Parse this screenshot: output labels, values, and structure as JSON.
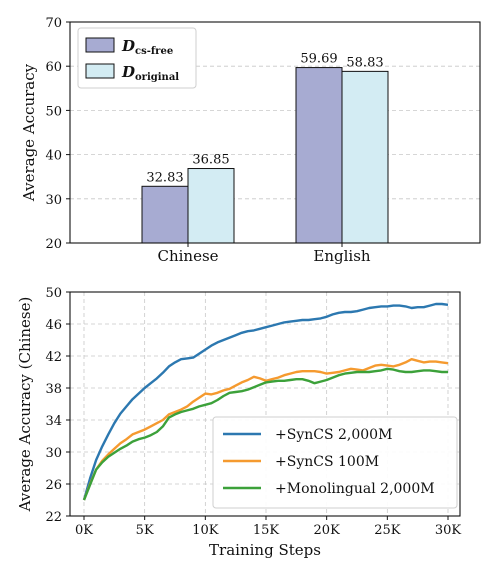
{
  "chart_data": [
    {
      "type": "bar",
      "ylabel": "Average Accuracy",
      "ylim": [
        20,
        70
      ],
      "yticks": [
        20,
        30,
        40,
        50,
        60,
        70
      ],
      "categories": [
        "Chinese",
        "English"
      ],
      "grid": true,
      "legend_position": "top-left",
      "series": [
        {
          "name_main": "D",
          "name_sub": "cs-free",
          "values": [
            32.83,
            59.69
          ],
          "value_labels": [
            "32.83",
            "59.69"
          ],
          "color": "#a7abd2"
        },
        {
          "name_main": "D",
          "name_sub": "original",
          "values": [
            36.85,
            58.83
          ],
          "value_labels": [
            "36.85",
            "58.83"
          ],
          "color": "#d3ecf3"
        }
      ]
    },
    {
      "type": "line",
      "xlabel": "Training Steps",
      "ylabel": "Average Accuracy (Chinese)",
      "ylim": [
        22,
        50
      ],
      "yticks": [
        22,
        26,
        30,
        34,
        38,
        42,
        46,
        50
      ],
      "xlim": [
        0,
        30000
      ],
      "xticks": [
        0,
        5000,
        10000,
        15000,
        20000,
        25000,
        30000
      ],
      "xtick_labels": [
        "0K",
        "5K",
        "10K",
        "15K",
        "20K",
        "25K",
        "30K"
      ],
      "grid": true,
      "legend_position": "lower-right",
      "x": [
        0,
        500,
        1000,
        1500,
        2000,
        2500,
        3000,
        3500,
        4000,
        4500,
        5000,
        5500,
        6000,
        6500,
        7000,
        7500,
        8000,
        8500,
        9000,
        9500,
        10000,
        10500,
        11000,
        11500,
        12000,
        12500,
        13000,
        13500,
        14000,
        14500,
        15000,
        15500,
        16000,
        16500,
        17000,
        17500,
        18000,
        18500,
        19000,
        19500,
        20000,
        20500,
        21000,
        21500,
        22000,
        22500,
        23000,
        23500,
        24000,
        24500,
        25000,
        25500,
        26000,
        26500,
        27000,
        27500,
        28000,
        28500,
        29000,
        29500,
        30000
      ],
      "series": [
        {
          "name": "+SynCS 2,000M",
          "color": "#2c78b0",
          "values": [
            24.0,
            26.7,
            29.0,
            30.7,
            32.2,
            33.6,
            34.8,
            35.7,
            36.6,
            37.3,
            38.0,
            38.6,
            39.2,
            39.9,
            40.7,
            41.2,
            41.6,
            41.7,
            41.8,
            42.3,
            42.8,
            43.3,
            43.7,
            44.0,
            44.3,
            44.6,
            44.9,
            45.1,
            45.2,
            45.4,
            45.6,
            45.8,
            46.0,
            46.2,
            46.3,
            46.4,
            46.5,
            46.5,
            46.6,
            46.7,
            46.9,
            47.2,
            47.4,
            47.5,
            47.5,
            47.6,
            47.8,
            48.0,
            48.1,
            48.2,
            48.2,
            48.3,
            48.3,
            48.2,
            48.0,
            48.1,
            48.1,
            48.3,
            48.5,
            48.5,
            48.4
          ]
        },
        {
          "name": "+SynCS 100M",
          "color": "#f59a2f",
          "values": [
            24.0,
            26.0,
            27.8,
            28.9,
            29.7,
            30.4,
            31.1,
            31.6,
            32.2,
            32.5,
            32.8,
            33.2,
            33.6,
            34.0,
            34.7,
            35.0,
            35.3,
            35.7,
            36.3,
            36.8,
            37.3,
            37.2,
            37.4,
            37.7,
            37.9,
            38.3,
            38.7,
            39.0,
            39.4,
            39.2,
            38.9,
            39.1,
            39.3,
            39.6,
            39.8,
            40.0,
            40.1,
            40.1,
            40.1,
            40.0,
            39.8,
            39.9,
            40.0,
            40.2,
            40.4,
            40.3,
            40.2,
            40.5,
            40.8,
            40.9,
            40.8,
            40.7,
            40.9,
            41.2,
            41.6,
            41.4,
            41.2,
            41.3,
            41.3,
            41.2,
            41.1
          ]
        },
        {
          "name": "+Monolingual 2,000M",
          "color": "#3ca13a",
          "values": [
            24.0,
            25.9,
            27.8,
            28.7,
            29.4,
            29.9,
            30.4,
            30.8,
            31.3,
            31.6,
            31.8,
            32.1,
            32.5,
            33.2,
            34.3,
            34.7,
            35.0,
            35.2,
            35.4,
            35.7,
            35.9,
            36.1,
            36.5,
            37.0,
            37.4,
            37.5,
            37.6,
            37.8,
            38.1,
            38.4,
            38.7,
            38.8,
            38.9,
            38.9,
            39.0,
            39.1,
            39.1,
            38.9,
            38.6,
            38.8,
            39.0,
            39.3,
            39.6,
            39.8,
            39.9,
            40.0,
            40.0,
            40.0,
            40.1,
            40.2,
            40.4,
            40.3,
            40.1,
            40.0,
            40.0,
            40.1,
            40.2,
            40.2,
            40.1,
            40.0,
            40.0
          ]
        }
      ]
    }
  ]
}
